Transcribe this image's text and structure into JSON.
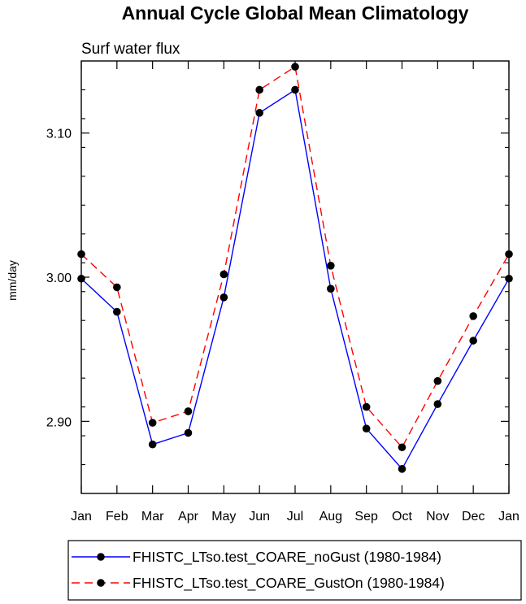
{
  "chart_data": {
    "type": "line",
    "title": "Annual Cycle Global Mean Climatology",
    "subtitle": "Surf water flux",
    "xlabel": "",
    "ylabel": "mm/day",
    "categories": [
      "Jan",
      "Feb",
      "Mar",
      "Apr",
      "May",
      "Jun",
      "Jul",
      "Aug",
      "Sep",
      "Oct",
      "Nov",
      "Dec",
      "Jan"
    ],
    "ylim": [
      2.85,
      3.15
    ],
    "yticks_major": [
      2.9,
      3.0,
      3.1
    ],
    "ytick_labels": [
      "2.90",
      "3.00",
      "3.10"
    ],
    "yticks_minor_step": 0.02,
    "series": [
      {
        "name": "FHISTC_LTso.test_COARE_noGust (1980-1984)",
        "color": "#0000ff",
        "dash": "solid",
        "marker": "filled-circle",
        "values": [
          2.999,
          2.976,
          2.884,
          2.892,
          2.986,
          3.114,
          3.13,
          2.992,
          2.895,
          2.867,
          2.912,
          2.956,
          2.999
        ]
      },
      {
        "name": "FHISTC_LTso.test_COARE_GustOn (1980-1984)",
        "color": "#ff0000",
        "dash": "dashed",
        "marker": "filled-circle",
        "values": [
          3.016,
          2.993,
          2.899,
          2.907,
          3.002,
          3.13,
          3.146,
          3.008,
          2.91,
          2.882,
          2.928,
          2.973,
          3.016
        ]
      }
    ],
    "legend_position": "bottom"
  }
}
